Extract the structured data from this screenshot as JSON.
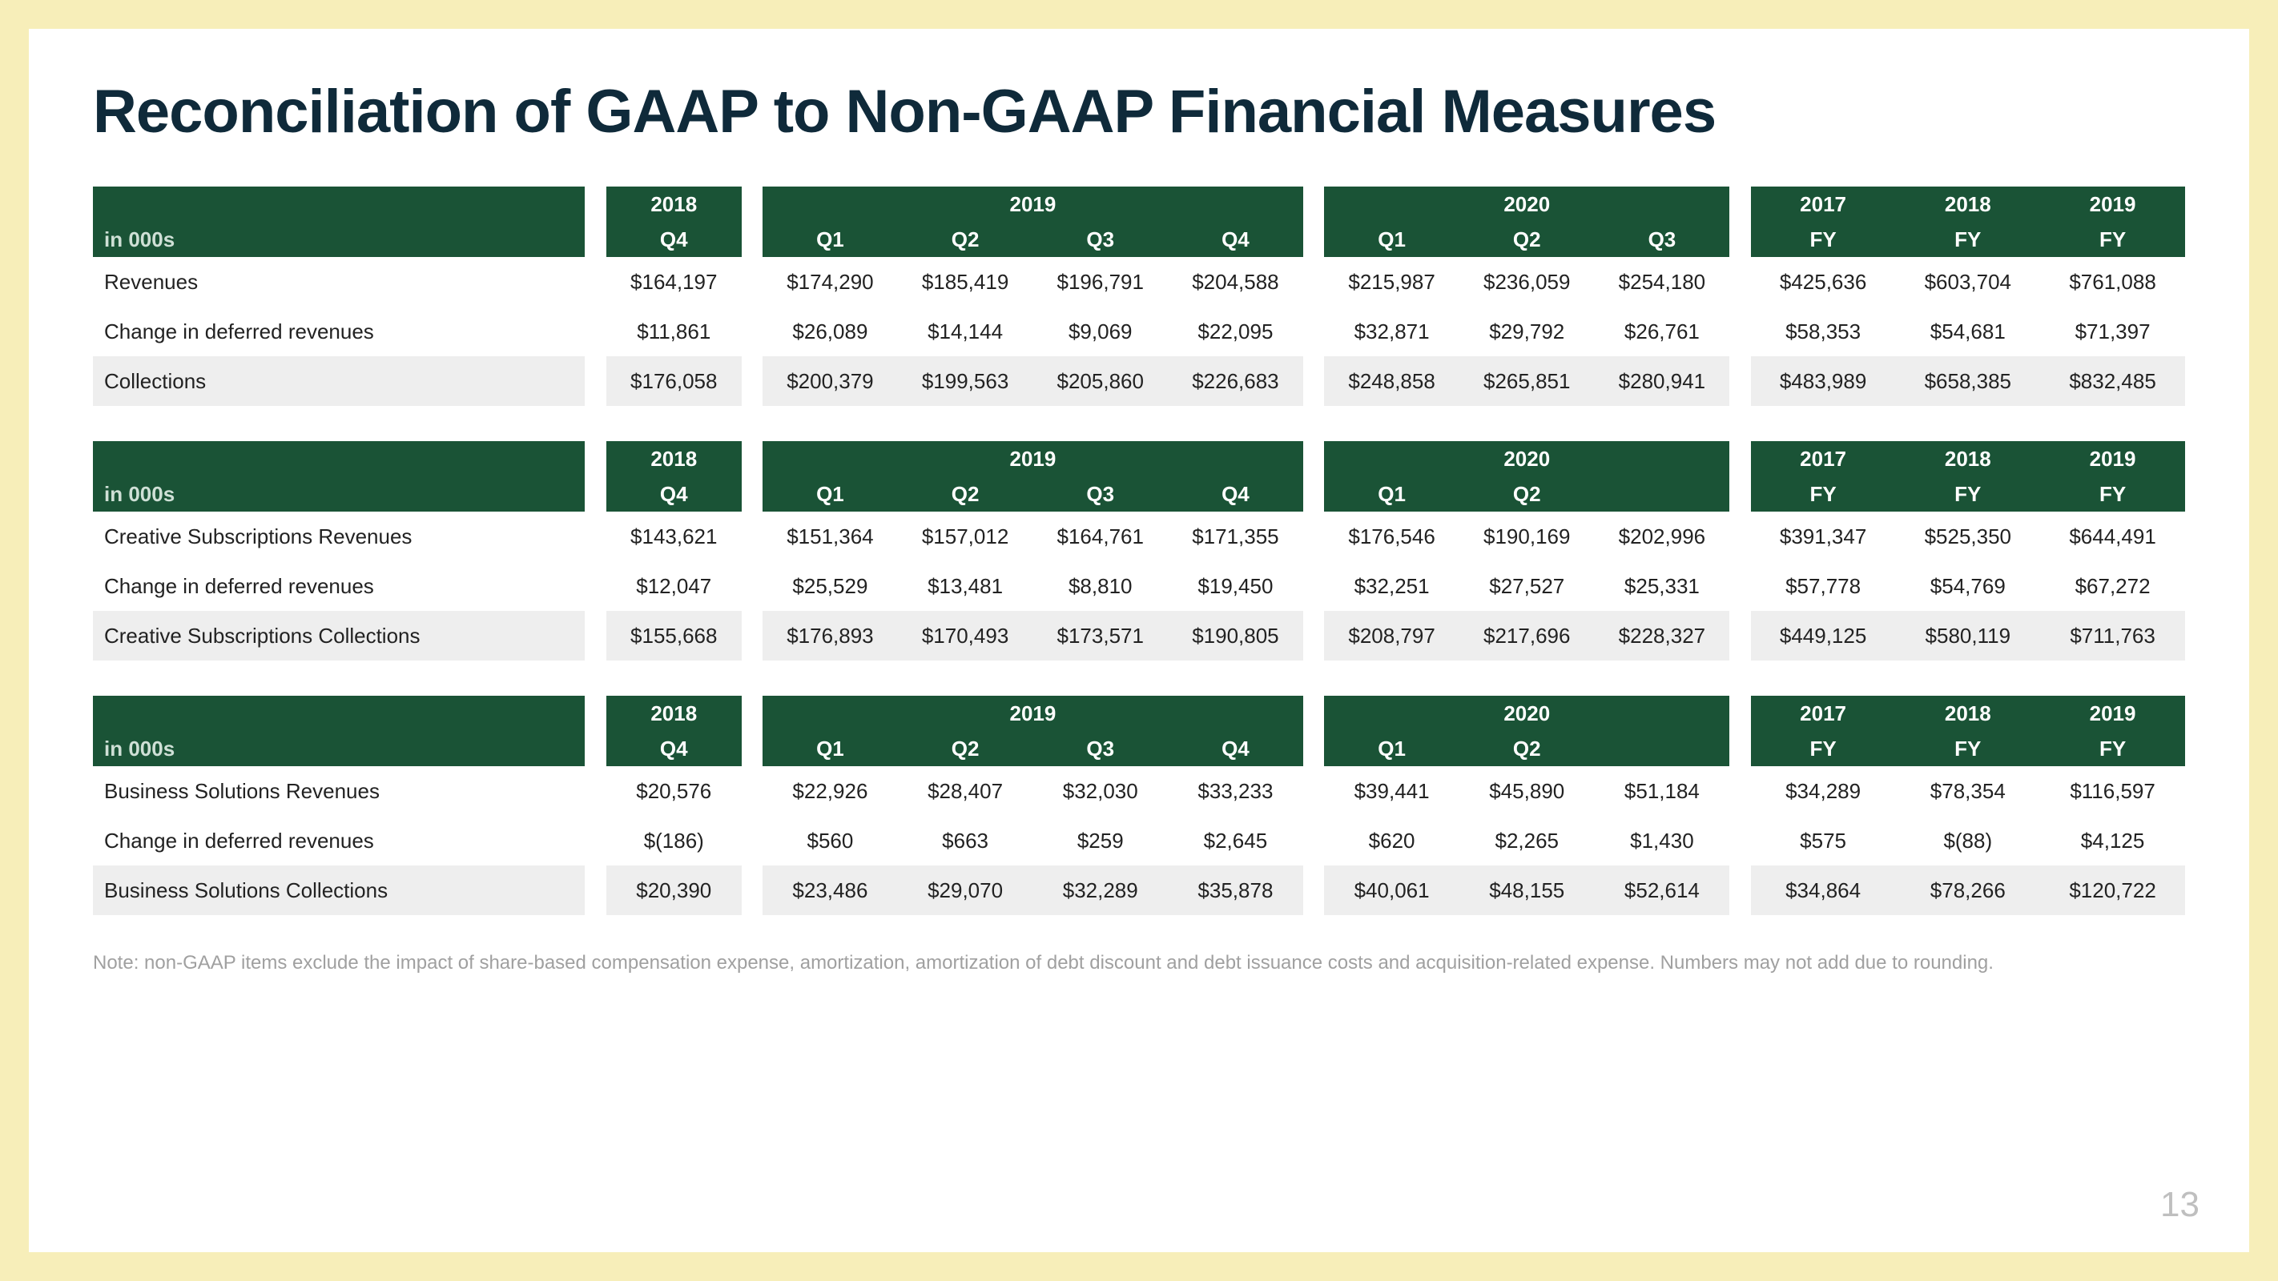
{
  "colors": {
    "page_bg": "#f7eeb9",
    "header_bg": "#1a5336",
    "header_text": "#ffffff",
    "title_color": "#0f2a3a",
    "shaded_row": "#eeeeee",
    "body_text": "#222222",
    "note_color": "#a0a0a0",
    "page_num_color": "#bfbfbf"
  },
  "title": "Reconciliation of GAAP to Non-GAAP Financial Measures",
  "unit_label": "in 000s",
  "page_number": "13",
  "note": "Note: non-GAAP items exclude the impact of share-based compensation expense, amortization, amortization of debt discount and debt issuance costs and acquisition-related expense. Numbers may not add due to rounding.",
  "column_groups": [
    {
      "year": "2018",
      "subs": [
        "Q4"
      ]
    },
    {
      "year": "2019",
      "subs": [
        "Q1",
        "Q2",
        "Q3",
        "Q4"
      ]
    },
    {
      "year": "2020",
      "subs": [
        "Q1",
        "Q2",
        "Q3"
      ]
    },
    {
      "year_labels": [
        "2017",
        "2018",
        "2019"
      ],
      "subs": [
        "FY",
        "FY",
        "FY"
      ]
    }
  ],
  "tables": [
    {
      "subs_override_group3": [
        "Q1",
        "Q2",
        "Q3"
      ],
      "rows": [
        {
          "label": "Revenues",
          "shaded": false,
          "vals": [
            "$164,197",
            "$174,290",
            "$185,419",
            "$196,791",
            "$204,588",
            "$215,987",
            "$236,059",
            "$254,180",
            "$425,636",
            "$603,704",
            "$761,088"
          ]
        },
        {
          "label": "Change in deferred revenues",
          "shaded": false,
          "vals": [
            "$11,861",
            "$26,089",
            "$14,144",
            "$9,069",
            "$22,095",
            "$32,871",
            "$29,792",
            "$26,761",
            "$58,353",
            "$54,681",
            "$71,397"
          ]
        },
        {
          "label": "Collections",
          "shaded": true,
          "vals": [
            "$176,058",
            "$200,379",
            "$199,563",
            "$205,860",
            "$226,683",
            "$248,858",
            "$265,851",
            "$280,941",
            "$483,989",
            "$658,385",
            "$832,485"
          ]
        }
      ]
    },
    {
      "subs_override_group3": [
        "Q1",
        "Q2",
        ""
      ],
      "rows": [
        {
          "label": "Creative Subscriptions Revenues",
          "shaded": false,
          "vals": [
            "$143,621",
            "$151,364",
            "$157,012",
            "$164,761",
            "$171,355",
            "$176,546",
            "$190,169",
            "$202,996",
            "$391,347",
            "$525,350",
            "$644,491"
          ]
        },
        {
          "label": "Change in deferred revenues",
          "shaded": false,
          "vals": [
            "$12,047",
            "$25,529",
            "$13,481",
            "$8,810",
            "$19,450",
            "$32,251",
            "$27,527",
            "$25,331",
            "$57,778",
            "$54,769",
            "$67,272"
          ]
        },
        {
          "label": "Creative Subscriptions Collections",
          "shaded": true,
          "vals": [
            "$155,668",
            "$176,893",
            "$170,493",
            "$173,571",
            "$190,805",
            "$208,797",
            "$217,696",
            "$228,327",
            "$449,125",
            "$580,119",
            "$711,763"
          ]
        }
      ]
    },
    {
      "subs_override_group3": [
        "Q1",
        "Q2",
        ""
      ],
      "rows": [
        {
          "label": "Business Solutions Revenues",
          "shaded": false,
          "vals": [
            "$20,576",
            "$22,926",
            "$28,407",
            "$32,030",
            "$33,233",
            "$39,441",
            "$45,890",
            "$51,184",
            "$34,289",
            "$78,354",
            "$116,597"
          ]
        },
        {
          "label": "Change in deferred revenues",
          "shaded": false,
          "vals": [
            "$(186)",
            "$560",
            "$663",
            "$259",
            "$2,645",
            "$620",
            "$2,265",
            "$1,430",
            "$575",
            "$(88)",
            "$4,125"
          ]
        },
        {
          "label": "Business Solutions Collections",
          "shaded": true,
          "vals": [
            "$20,390",
            "$23,486",
            "$29,070",
            "$32,289",
            "$35,878",
            "$40,061",
            "$48,155",
            "$52,614",
            "$34,864",
            "$78,266",
            "$120,722"
          ]
        }
      ]
    }
  ]
}
